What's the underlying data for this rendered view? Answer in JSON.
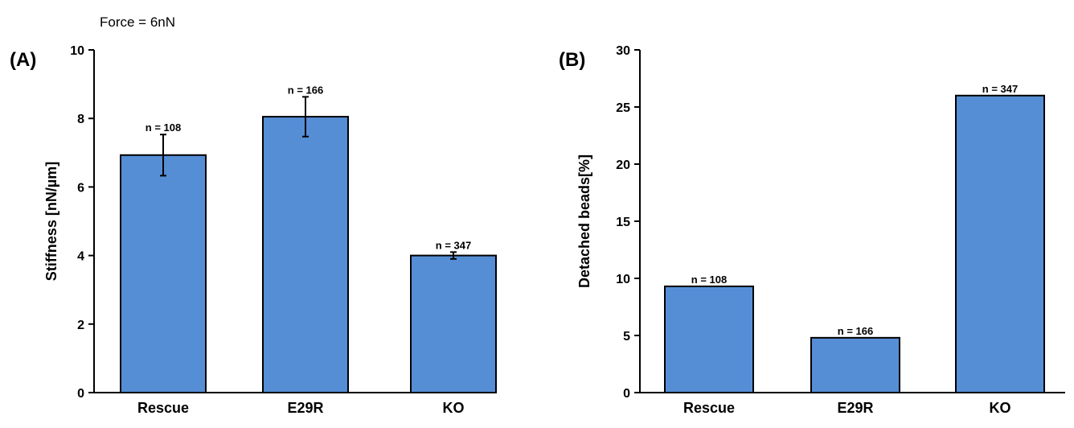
{
  "figure_note": "Force = 6nN",
  "colors": {
    "bar": "#558ed5",
    "bar_edge": "#000000",
    "axis": "#000000"
  },
  "chart_data": [
    {
      "type": "bar",
      "panel_label": "(A)",
      "ylabel": "Stiffness [nN/µm]",
      "ylim": [
        0,
        10
      ],
      "yticks": [
        0,
        2,
        4,
        6,
        8,
        10
      ],
      "categories": [
        "Rescue",
        "E29R",
        "KO"
      ],
      "values": [
        6.93,
        8.05,
        4.0
      ],
      "errors": [
        0.6,
        0.58,
        0.1
      ],
      "annotations": [
        "n = 108",
        "n = 166",
        "n = 347"
      ]
    },
    {
      "type": "bar",
      "panel_label": "(B)",
      "ylabel": "Detached beads[%]",
      "ylim": [
        0,
        30
      ],
      "yticks": [
        0,
        5,
        10,
        15,
        20,
        25,
        30
      ],
      "categories": [
        "Rescue",
        "E29R",
        "KO"
      ],
      "values": [
        9.3,
        4.8,
        26.0
      ],
      "annotations": [
        "n = 108",
        "n = 166",
        "n = 347"
      ]
    }
  ]
}
